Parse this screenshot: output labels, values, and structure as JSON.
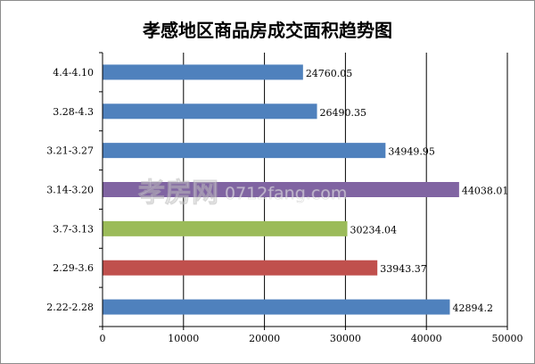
{
  "chart_data": {
    "type": "bar",
    "orientation": "horizontal",
    "title": "孝感地区商品房成交面积趋势图",
    "categories": [
      "4.4-4.10",
      "3.28-4.3",
      "3.21-3.27",
      "3.14-3.20",
      "3.7-3.13",
      "2.29-3.6",
      "2.22-2.28"
    ],
    "values": [
      24760.05,
      26490.35,
      34949.95,
      44038.01,
      30234.04,
      33943.37,
      42894.2
    ],
    "value_labels": [
      "24760.05",
      "26490.35",
      "34949.95",
      "44038.01",
      "30234.04",
      "33943.37",
      "42894.2"
    ],
    "colors": [
      "#4f81bd",
      "#4f81bd",
      "#4f81bd",
      "#8064a2",
      "#9bbb59",
      "#c0504d",
      "#4f81bd"
    ],
    "xlim": [
      0,
      50000
    ],
    "xticks": [
      "0",
      "10000",
      "20000",
      "30000",
      "40000",
      "50000"
    ],
    "grid": "vertical",
    "legend": "none",
    "xlabel": "",
    "ylabel": ""
  },
  "watermark": {
    "logo_text": "孝房网",
    "site_text": "0712fang.com"
  }
}
